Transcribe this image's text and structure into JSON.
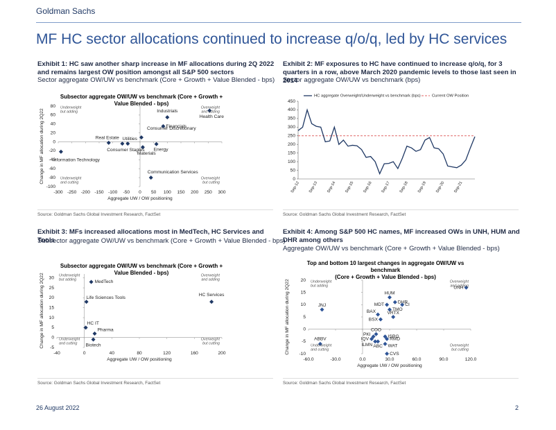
{
  "header": {
    "brand": "Goldman Sachs",
    "title": "MF HC sector allocations continued to increase q/o/q, led by HC services"
  },
  "footer": {
    "date": "26 August 2022",
    "page": "2"
  },
  "chart_data": [
    {
      "type": "scatter",
      "exhibit": "Exhibit 1: HC saw another sharp increase in MF allocations during 2Q 2022 and remains largest OW position amongst all S&P 500 sectors",
      "subtitle": "Sector aggregate OW/UW vs benchmark (Core + Growth + Value Blended - bps)",
      "title": [
        "Subsector aggregate OW/UW vs benchmark (Core + Growth +",
        "Value Blended - bps)"
      ],
      "xlabel": "Aggregate UW / OW positioning",
      "ylabel": "Change in MF allocation during 2Q22",
      "labels": [
        "Information Technology",
        "Real Estate",
        "Consumer Staples",
        "Utilities",
        "Consumer Discretionary",
        "Industrials",
        "Financials",
        "Energy",
        "Materials",
        "Communication Services",
        "Health Care"
      ],
      "x": [
        -290,
        -115,
        -65,
        -45,
        5,
        100,
        85,
        60,
        10,
        40,
        255
      ],
      "values": [
        -22,
        -2,
        -4,
        -4,
        10,
        55,
        35,
        -5,
        -12,
        -80,
        70
      ],
      "color": "#1f3864",
      "xlim": [
        -300,
        300
      ],
      "xticks": [
        -300,
        -250,
        -200,
        -150,
        -100,
        -50,
        0,
        50,
        100,
        150,
        200,
        250,
        300
      ],
      "ylim": [
        -100,
        80
      ],
      "yticks": [
        -100,
        -80,
        -60,
        -40,
        -20,
        0,
        20,
        40,
        60,
        80
      ],
      "quadrant_notes": [
        [
          "Underweight",
          "but adding"
        ],
        [
          "Overweight",
          "and adding"
        ],
        [
          "Underweight",
          "and cutting"
        ],
        [
          "Overweight",
          "but cutting"
        ]
      ],
      "source": "Source: Goldman Sachs Global Investment Research, FactSet"
    },
    {
      "type": "line",
      "exhibit": "Exhibit 2: MF exposures to HC have continued to increase q/o/q, for 3 quarters in a row, above March 2020 pandemic levels to those last seen in 2014",
      "subtitle": "Sector aggregate OW/UW vs benchmark (bps)",
      "categories": [
        "Sep-12",
        null,
        null,
        null,
        "Sep-13",
        null,
        null,
        null,
        "Sep-14",
        null,
        null,
        null,
        "Sep-15",
        null,
        null,
        null,
        "Sep-16",
        null,
        null,
        null,
        "Sep-17",
        null,
        null,
        null,
        "Sep-18",
        null,
        null,
        null,
        "Sep-19",
        null,
        null,
        null,
        "Sep-20",
        null,
        null,
        null,
        "Sep-21",
        null,
        null,
        null
      ],
      "series": [
        {
          "name": "HC aggregate Overweight/Underweight vs benchmark (bps)",
          "color": "#1f3864",
          "values": [
            280,
            300,
            400,
            320,
            305,
            300,
            215,
            220,
            300,
            200,
            225,
            190,
            195,
            192,
            170,
            125,
            130,
            100,
            30,
            88,
            90,
            100,
            60,
            120,
            190,
            180,
            160,
            170,
            225,
            240,
            180,
            175,
            145,
            75,
            70,
            65,
            80,
            110,
            180,
            245
          ]
        }
      ],
      "reference": {
        "name": "Current OW Position",
        "value": 250,
        "color": "#e06666"
      },
      "ylim": [
        0,
        450
      ],
      "yticks": [
        0,
        50,
        100,
        150,
        200,
        250,
        300,
        350,
        400,
        450
      ],
      "source": "Source: Goldman Sachs Global Investment Research, FactSet"
    },
    {
      "type": "scatter",
      "exhibit": "Exhibit 3: MFs increased allocations most in MedTech, HC Services and Tools",
      "subtitle": "Subsector aggregate OW/UW vs benchmark (Core + Growth + Value Blended - bps)",
      "title": [
        "Subsector aggregate OW/UW vs benchmark (Core + Growth +",
        "Value Blended - bps)"
      ],
      "xlabel": "Aggregate UW / OW positioning",
      "ylabel": "Change in MF allocation during 2Q22",
      "labels": [
        "MedTech",
        "Life Sciences Tools",
        "HC Services",
        "HC IT",
        "Pharma",
        "Biotech"
      ],
      "x": [
        10,
        3,
        185,
        2,
        15,
        13
      ],
      "values": [
        28,
        18,
        18,
        5,
        2,
        -1
      ],
      "color": "#1f3864",
      "xlim": [
        -40,
        200
      ],
      "xticks": [
        -40,
        0,
        40,
        80,
        120,
        160,
        200
      ],
      "ylim": [
        -5,
        32
      ],
      "yticks": [
        -5,
        0,
        5,
        10,
        15,
        20,
        25,
        30
      ],
      "quadrant_notes": [
        [
          "Underweight",
          "but adding"
        ],
        [
          "Overweight",
          "and adding"
        ],
        [
          "Underweight",
          "and cutting"
        ],
        [
          "Overweight",
          "but cutting"
        ]
      ],
      "source": "Source: Goldman Sachs Global Investment Research, FactSet"
    },
    {
      "type": "scatter",
      "exhibit": "Exhibit 4: Among S&P 500 HC names, MF increased OWs in UNH, HUM and DHR among others",
      "subtitle": "Aggregate OW/UW vs benchmark (Core + Growth + Value Blended - bps)",
      "title": [
        "Top and bottom 10 largest changes in aggregate OW/UW vs",
        "benchmark",
        "(Core + Growth + Value Blended - bps)"
      ],
      "xlabel": "Aggregate UW / OW positioning",
      "ylabel": "Change in MF allocation during 2Q22",
      "labels": [
        "UNH",
        "HUM",
        "DHR",
        "MDT",
        "CI",
        "TMO",
        "JNJ",
        "VRTX",
        "BAX",
        "BSX",
        "COO",
        "PKI",
        "IQV",
        "ILMN",
        "ABC",
        "ISRG",
        "RMD",
        "WAT",
        "CVS",
        "ABBV"
      ],
      "x": [
        115,
        30,
        36,
        27,
        44,
        30,
        -45,
        34,
        17,
        20,
        15,
        12,
        10,
        14,
        17,
        25,
        27,
        25,
        27,
        -47
      ],
      "values": [
        17,
        13,
        11,
        10,
        10,
        8,
        8,
        5,
        6,
        4,
        -2,
        -3,
        -4,
        -5,
        -5,
        -3,
        -4,
        -6,
        -10,
        -6
      ],
      "color": "#2f5597",
      "xlim": [
        -60,
        120
      ],
      "xticks": [
        {
          "value": -60,
          "label": "-60.0"
        },
        {
          "value": -30,
          "label": "-30.0"
        },
        {
          "value": 0,
          "label": "0.0"
        },
        {
          "value": 30,
          "label": "30.0"
        },
        {
          "value": 60,
          "label": "60.0"
        },
        {
          "value": 90,
          "label": "90.0"
        },
        {
          "value": 120,
          "label": "120.0"
        }
      ],
      "ylim": [
        -10,
        20
      ],
      "yticks": [
        -10,
        -5,
        0,
        5,
        10,
        15,
        20
      ],
      "quadrant_notes": [
        [
          "Underweight",
          "but adding"
        ],
        [
          "Overweight",
          "and adding"
        ],
        [
          "Underweight",
          "and cutting"
        ],
        [
          "Overweight",
          "but cutting"
        ]
      ],
      "source": "Source: Goldman Sachs Global Investment Research, FactSet"
    }
  ]
}
